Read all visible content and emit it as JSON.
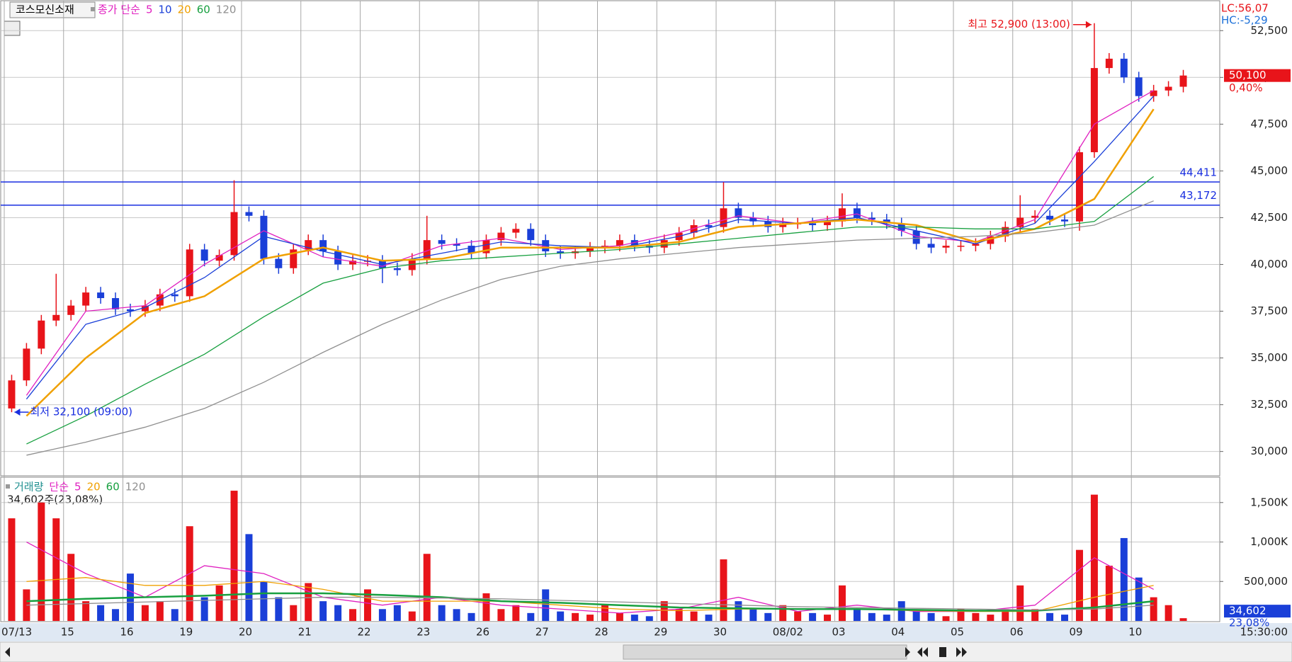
{
  "chart_data": {
    "type": "candlestick",
    "title": "코스모신소재",
    "legend_label": "종가 단순",
    "lc_label": "LC:56,07",
    "hc_label": "HC:-5,29",
    "time_label": "15:30:00",
    "up_color": "#e8141a",
    "down_color": "#1a3fd8",
    "grid": true,
    "ylim": [
      28700,
      54100
    ],
    "yticks": [
      {
        "value": 30000,
        "label": "30,000"
      },
      {
        "value": 32500,
        "label": "32,500"
      },
      {
        "value": 35000,
        "label": "35,000"
      },
      {
        "value": 37500,
        "label": "37,500"
      },
      {
        "value": 40000,
        "label": "40,000"
      },
      {
        "value": 42500,
        "label": "42,500"
      },
      {
        "value": 45000,
        "label": "45,000"
      },
      {
        "value": 47500,
        "label": "47,500"
      },
      {
        "value": 50000,
        "label": "50,000"
      },
      {
        "value": 52500,
        "label": "52,500"
      }
    ],
    "day_labels": [
      "07/13",
      "15",
      "16",
      "19",
      "20",
      "21",
      "22",
      "23",
      "26",
      "27",
      "28",
      "29",
      "30",
      "08/02",
      "03",
      "04",
      "05",
      "06",
      "09",
      "10"
    ],
    "open": [
      32300,
      33800,
      35500,
      37000,
      37300,
      37800,
      38500,
      38200,
      37600,
      37500,
      37800,
      38400,
      38300,
      40800,
      40200,
      40500,
      42800,
      42600,
      40300,
      39800,
      40800,
      41300,
      40700,
      40000,
      40200,
      40200,
      39800,
      39700,
      40300,
      41300,
      41100,
      41000,
      40600,
      41300,
      41700,
      41900,
      41300,
      40700,
      40600,
      40700,
      40900,
      41000,
      41300,
      41000,
      40900,
      41300,
      41700,
      42100,
      42000,
      43000,
      42500,
      42300,
      42000,
      42200,
      42200,
      42100,
      42300,
      43000,
      42500,
      42400,
      42200,
      41800,
      41100,
      40900,
      41000,
      41000,
      41100,
      41500,
      42000,
      42500,
      42600,
      42400,
      42300,
      46000,
      50500,
      51000,
      50000,
      49000,
      49300,
      49500
    ],
    "high": [
      34100,
      35800,
      37300,
      39500,
      38100,
      38800,
      38800,
      38500,
      37900,
      38100,
      38700,
      38700,
      41100,
      41100,
      40800,
      44500,
      43100,
      42900,
      40600,
      41100,
      41600,
      41600,
      41000,
      40500,
      40500,
      40500,
      40100,
      40600,
      42600,
      41600,
      41400,
      41300,
      41600,
      42000,
      42200,
      42200,
      41600,
      41000,
      41000,
      41200,
      41300,
      41600,
      41600,
      41300,
      41600,
      42000,
      42400,
      42400,
      44400,
      43300,
      42800,
      42600,
      42500,
      42500,
      42500,
      42600,
      43800,
      43300,
      42800,
      42700,
      42500,
      42100,
      41400,
      41300,
      41300,
      41400,
      41800,
      42300,
      43700,
      42900,
      42900,
      42700,
      46300,
      52900,
      51300,
      51300,
      50300,
      49600,
      49800,
      50400
    ],
    "low": [
      32100,
      33500,
      35200,
      36700,
      37000,
      37500,
      37900,
      37300,
      37200,
      37200,
      37500,
      38000,
      38000,
      39900,
      39900,
      40200,
      42300,
      40000,
      39500,
      39500,
      40500,
      40400,
      39700,
      39700,
      39900,
      39000,
      39400,
      39400,
      40000,
      40800,
      40700,
      40300,
      40300,
      41000,
      41400,
      41000,
      40400,
      40300,
      40300,
      40400,
      40600,
      40700,
      40700,
      40600,
      40600,
      41000,
      41400,
      41700,
      41700,
      42200,
      42000,
      41700,
      41700,
      41900,
      41800,
      41800,
      42000,
      42200,
      42100,
      41900,
      41500,
      40800,
      40600,
      40600,
      40700,
      40700,
      40800,
      41200,
      41700,
      42200,
      42100,
      42000,
      41800,
      45700,
      50200,
      49700,
      48700,
      48700,
      49000,
      49200
    ],
    "close": [
      33800,
      35500,
      37000,
      37300,
      37800,
      38500,
      38200,
      37600,
      37500,
      37800,
      38400,
      38300,
      40800,
      40200,
      40500,
      42800,
      42600,
      40300,
      39800,
      40800,
      41300,
      40700,
      40000,
      40200,
      40200,
      39800,
      39700,
      40300,
      41300,
      41100,
      41000,
      40600,
      41300,
      41700,
      41900,
      41300,
      40700,
      40600,
      40700,
      40900,
      41000,
      41300,
      41000,
      40900,
      41300,
      41700,
      42100,
      42000,
      43000,
      42500,
      42300,
      42000,
      42200,
      42200,
      42100,
      42300,
      43000,
      42500,
      42400,
      42200,
      41800,
      41100,
      40900,
      41000,
      41000,
      41100,
      41500,
      42000,
      42500,
      42600,
      42400,
      42300,
      46000,
      50500,
      51000,
      50000,
      49000,
      49300,
      49500,
      50100
    ],
    "ma_x": [
      1,
      5,
      9,
      13,
      17,
      21,
      25,
      29,
      33,
      37,
      41,
      45,
      49,
      53,
      57,
      61,
      65,
      69,
      73,
      77
    ],
    "series": [
      {
        "name": "5",
        "color": "#e020c0",
        "values": [
          33000,
          37500,
          37800,
          40000,
          41800,
          40400,
          39900,
          41000,
          41400,
          40800,
          41000,
          41700,
          42600,
          42200,
          42700,
          41500,
          41200,
          42400,
          47500,
          49300
        ]
      },
      {
        "name": "10",
        "color": "#1a3fd8",
        "values": [
          32800,
          36800,
          37700,
          39300,
          41500,
          40700,
          40000,
          40600,
          41200,
          41000,
          40900,
          41500,
          42400,
          42200,
          42500,
          41800,
          41100,
          42200,
          45500,
          49000
        ]
      },
      {
        "name": "20",
        "color": "#f0a000",
        "values": [
          31900,
          35000,
          37400,
          38300,
          40300,
          40900,
          40200,
          40300,
          40900,
          40900,
          40900,
          41200,
          42000,
          42200,
          42400,
          42100,
          41200,
          41900,
          43500,
          48300
        ]
      },
      {
        "name": "60",
        "color": "#18a040",
        "values": [
          30400,
          31900,
          33600,
          35200,
          37200,
          39000,
          39800,
          40200,
          40400,
          40600,
          40800,
          41100,
          41400,
          41700,
          42000,
          42000,
          41900,
          41900,
          42300,
          44700
        ]
      },
      {
        "name": "120",
        "color": "#909090",
        "values": [
          29800,
          30500,
          31300,
          32300,
          33700,
          35300,
          36800,
          38100,
          39200,
          39900,
          40300,
          40600,
          40900,
          41100,
          41300,
          41400,
          41500,
          41700,
          42100,
          43400
        ]
      }
    ],
    "hlines": [
      {
        "value": 44411,
        "label": "44,411"
      },
      {
        "value": 43172,
        "label": "43,172"
      }
    ],
    "high_note": "최고 52,900 (13:00)",
    "low_note": "최저 32,100 (09:00)",
    "last_price": 50100,
    "last_price_label": "50,100",
    "change_label": "0,40%",
    "volume": {
      "title": "거래량",
      "legend_label": "단순",
      "info": "34,602주(23,08%)",
      "ylim": [
        0,
        1812000
      ],
      "yticks": [
        {
          "value": 500000,
          "label": "500,000"
        },
        {
          "value": 1000000,
          "label": "1,000K"
        },
        {
          "value": 1500000,
          "label": "1,500K"
        }
      ],
      "values": [
        1300000,
        400000,
        1500000,
        1300000,
        850000,
        250000,
        200000,
        150000,
        600000,
        200000,
        250000,
        150000,
        1200000,
        300000,
        450000,
        1650000,
        1100000,
        500000,
        300000,
        200000,
        480000,
        250000,
        200000,
        150000,
        400000,
        150000,
        200000,
        120000,
        850000,
        200000,
        150000,
        100000,
        350000,
        150000,
        200000,
        100000,
        400000,
        120000,
        100000,
        80000,
        200000,
        100000,
        80000,
        60000,
        250000,
        150000,
        120000,
        80000,
        780000,
        250000,
        150000,
        100000,
        200000,
        120000,
        100000,
        80000,
        450000,
        150000,
        100000,
        80000,
        250000,
        120000,
        100000,
        60000,
        150000,
        100000,
        80000,
        150000,
        450000,
        150000,
        100000,
        80000,
        900000,
        1600000,
        700000,
        1050000,
        550000,
        300000,
        200000,
        34602
      ],
      "last_value": 34602,
      "last_value_label": "34,602",
      "ratio_label": "23,08%",
      "series": [
        {
          "name": "5",
          "color": "#e020c0",
          "values": [
            1000000,
            600000,
            300000,
            700000,
            600000,
            300000,
            200000,
            300000,
            200000,
            150000,
            100000,
            150000,
            300000,
            120000,
            200000,
            120000,
            120000,
            200000,
            800000,
            400000
          ]
        },
        {
          "name": "20",
          "color": "#f0a000",
          "values": [
            500000,
            550000,
            450000,
            450000,
            500000,
            400000,
            250000,
            250000,
            250000,
            200000,
            150000,
            130000,
            150000,
            150000,
            150000,
            130000,
            120000,
            120000,
            300000,
            450000
          ]
        },
        {
          "name": "60",
          "color": "#18a040",
          "values": [
            250000,
            280000,
            300000,
            320000,
            350000,
            350000,
            330000,
            300000,
            250000,
            230000,
            200000,
            170000,
            160000,
            150000,
            150000,
            140000,
            130000,
            130000,
            170000,
            250000
          ]
        },
        {
          "name": "120",
          "color": "#909090",
          "values": [
            200000,
            220000,
            240000,
            260000,
            280000,
            300000,
            300000,
            290000,
            280000,
            260000,
            240000,
            220000,
            200000,
            180000,
            170000,
            160000,
            150000,
            140000,
            150000,
            200000
          ]
        }
      ]
    }
  }
}
